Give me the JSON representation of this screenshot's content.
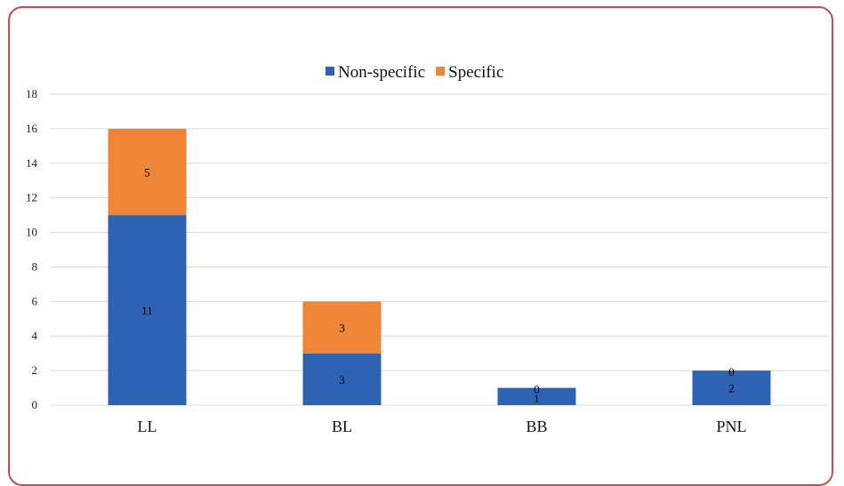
{
  "chart_data": {
    "type": "bar",
    "stacked": true,
    "categories": [
      "LL",
      "BL",
      "BB",
      "PNL"
    ],
    "series": [
      {
        "name": "Non-specific",
        "values": [
          11,
          3,
          1,
          2
        ],
        "color": "#2e63b4"
      },
      {
        "name": "Specific",
        "values": [
          5,
          3,
          0,
          0
        ],
        "color": "#ef8536"
      }
    ],
    "title": "",
    "xlabel": "",
    "ylabel": "",
    "ylim": [
      0,
      18
    ],
    "yticks": [
      0,
      2,
      4,
      6,
      8,
      10,
      12,
      14,
      16,
      18
    ],
    "grid": true,
    "legend": "top-center"
  }
}
